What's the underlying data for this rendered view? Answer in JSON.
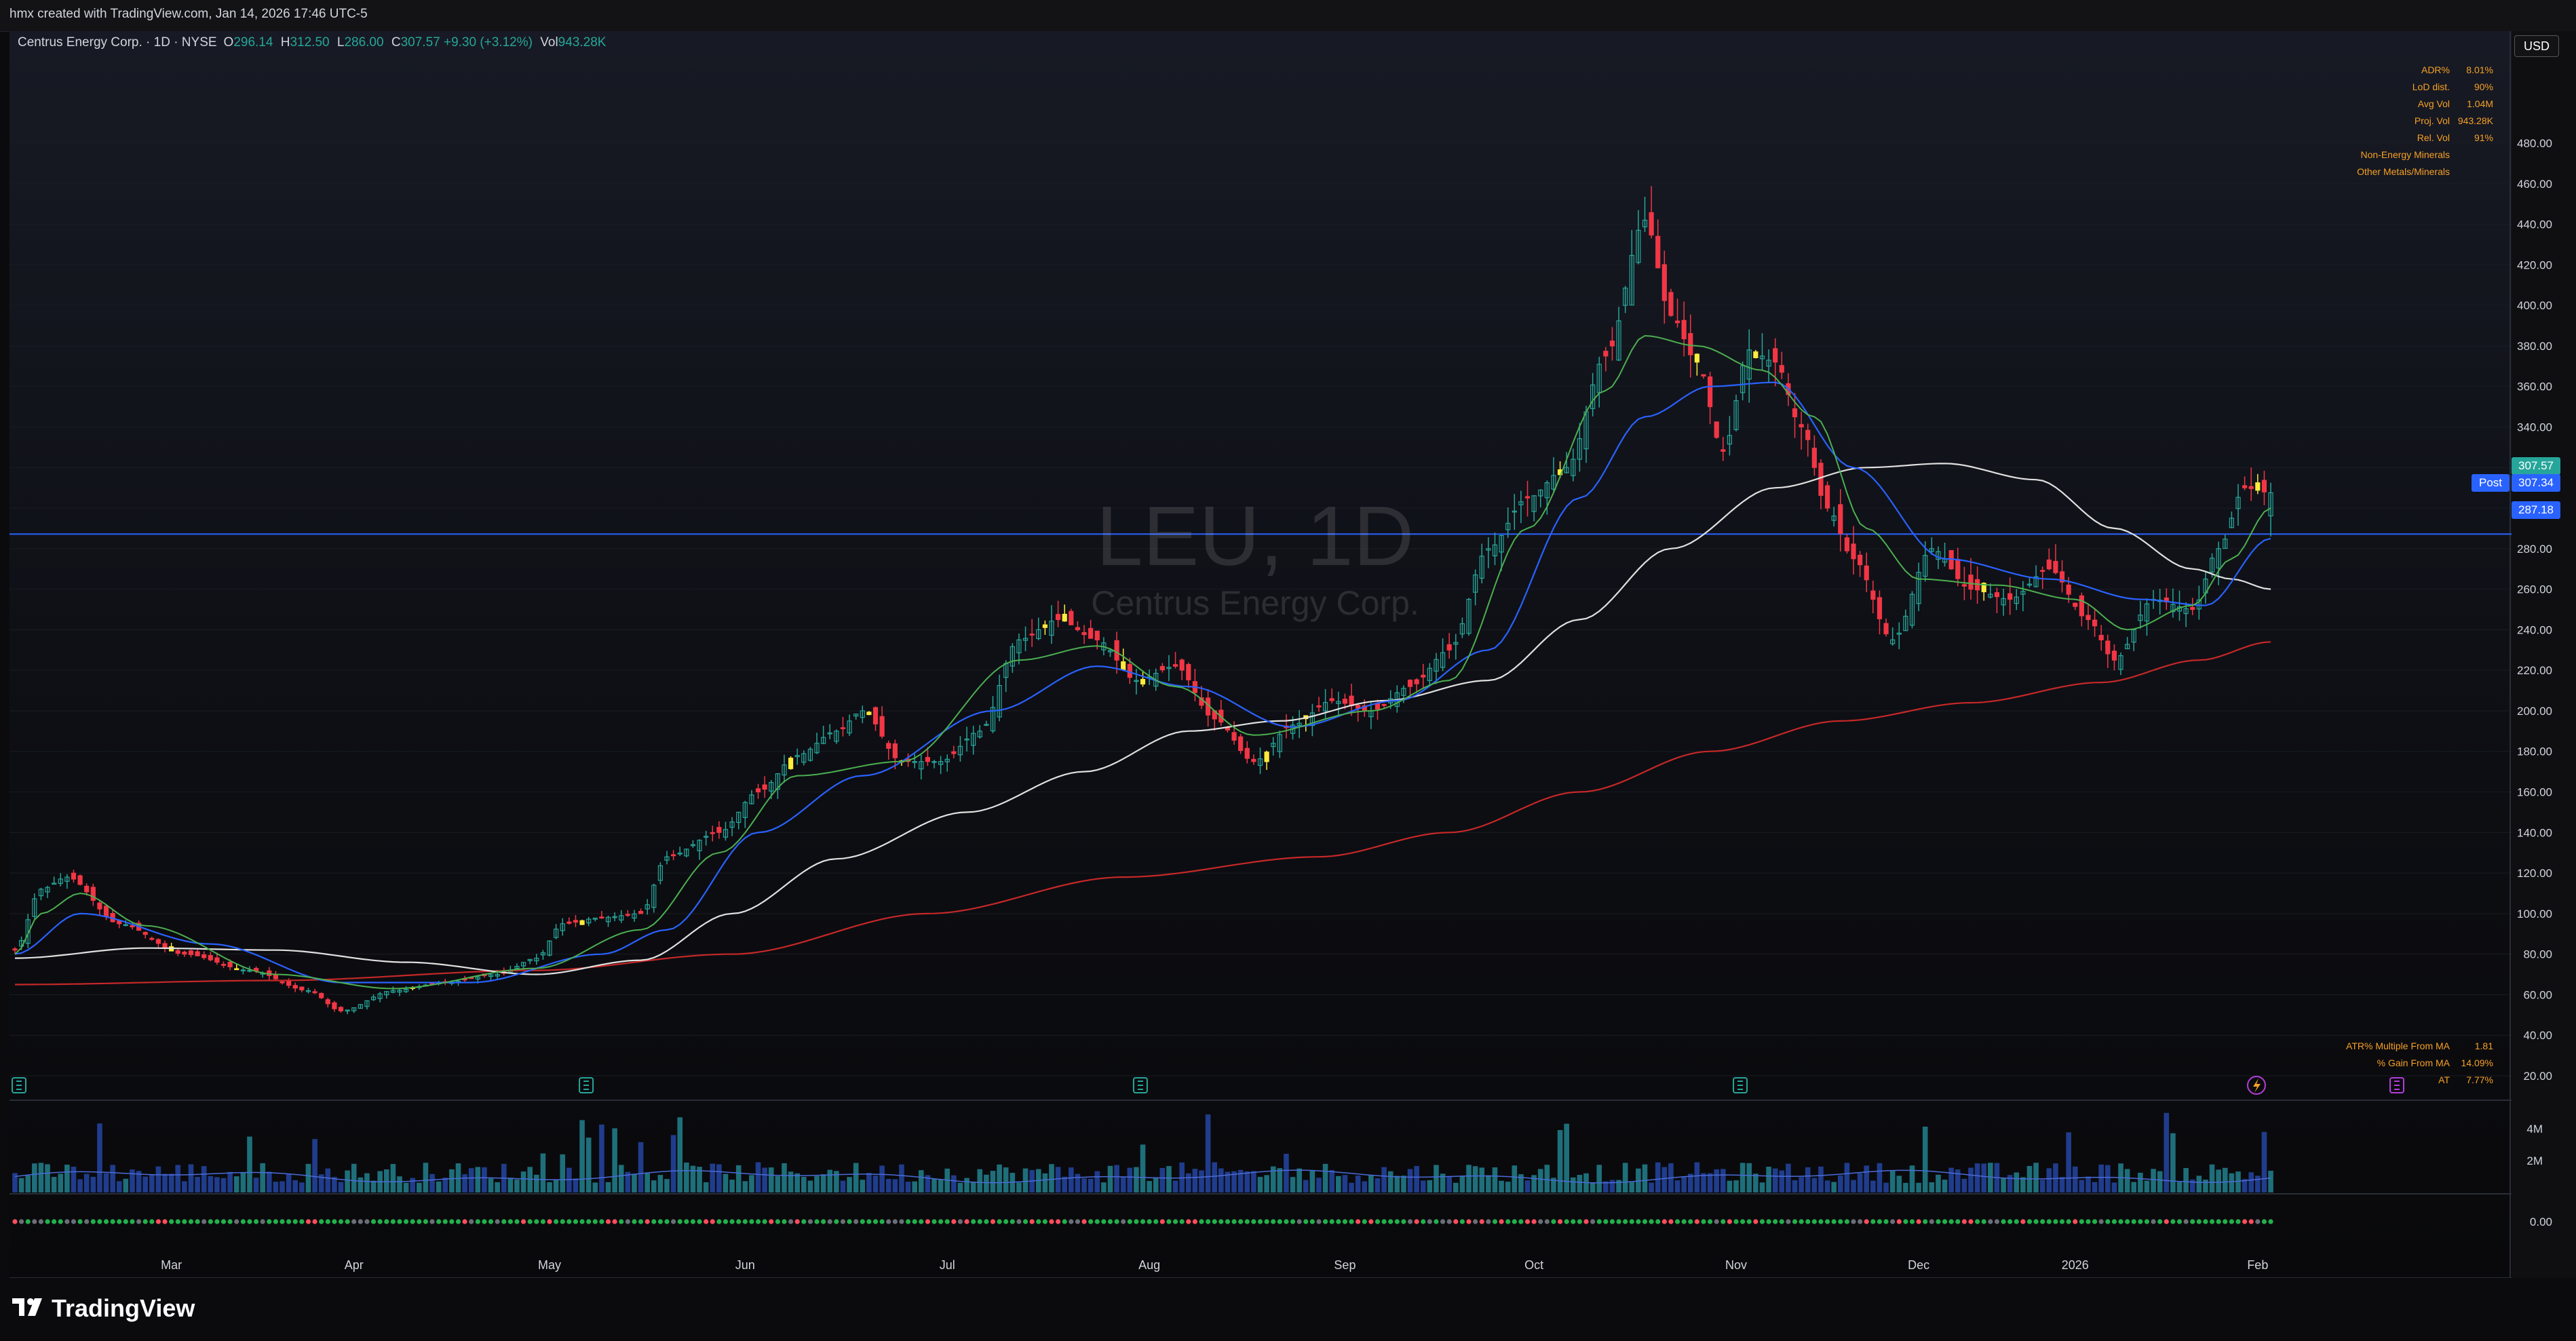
{
  "credit": "hmx created with TradingView.com, Jan 14, 2026 17:46 UTC-5",
  "header": {
    "title": "Centrus Energy Corp. · 1D · NYSE",
    "open_key": "O",
    "open": "296.14",
    "high_key": "H",
    "high": "312.50",
    "low_key": "L",
    "low": "286.00",
    "close_key": "C",
    "close": "307.57 +9.30 (+3.12%)",
    "vol_key": "Vol",
    "vol": "943.28K"
  },
  "currency": "USD",
  "watermark": {
    "symbol": "LEU, 1D",
    "name": "Centrus Energy Corp."
  },
  "stats_top": [
    {
      "label": "ADR%",
      "value": "8.01%"
    },
    {
      "label": "LoD dist.",
      "value": "90%"
    },
    {
      "label": "Avg Vol",
      "value": "1.04M"
    },
    {
      "label": "Proj. Vol",
      "value": "943.28K"
    },
    {
      "label": "Rel. Vol",
      "value": "91%"
    },
    {
      "label": "Non-Energy Minerals",
      "value": ""
    },
    {
      "label": "Other Metals/Minerals",
      "value": ""
    }
  ],
  "stats_bottom": [
    {
      "label": "ATR% Multiple From MA",
      "value": "1.81"
    },
    {
      "label": "% Gain From MA",
      "value": "14.09%"
    },
    {
      "label": "AT",
      "value": "7.77%"
    }
  ],
  "price_tags": {
    "last": "307.57",
    "post_label": "Post",
    "post": "307.34",
    "hline": "287.18"
  },
  "colors": {
    "up": "#26a69a",
    "down": "#f23645",
    "inside": "#ffeb3b",
    "ema10": "#4caf50",
    "ema21": "#2962ff",
    "sma50": "#e0e0e0",
    "sma200": "#c62828",
    "hline": "#2962ff",
    "stats": "#f7a025"
  },
  "chart_data": {
    "type": "candlestick",
    "symbol": "LEU",
    "timeframe": "1D",
    "exchange": "NYSE",
    "y_axis": {
      "range": [
        15,
        510
      ],
      "ticks": [
        "20.00",
        "40.00",
        "60.00",
        "80.00",
        "100.00",
        "120.00",
        "140.00",
        "160.00",
        "180.00",
        "200.00",
        "220.00",
        "240.00",
        "260.00",
        "280.00",
        "300.00",
        "320.00",
        "340.00",
        "360.00",
        "380.00",
        "400.00",
        "420.00",
        "440.00",
        "460.00",
        "480.00"
      ]
    },
    "x_axis": {
      "labels": [
        "Mar",
        "Apr",
        "May",
        "Jun",
        "Jul",
        "Aug",
        "Sep",
        "Oct",
        "Nov",
        "Dec",
        "2026",
        "Feb"
      ]
    },
    "volume_axis": {
      "ticks": [
        "4M",
        "2M"
      ]
    },
    "osc_axis": {
      "ticks": [
        "0.00"
      ]
    },
    "close_waypoints": [
      [
        0,
        82
      ],
      [
        4,
        112
      ],
      [
        8,
        118
      ],
      [
        16,
        95
      ],
      [
        26,
        80
      ],
      [
        36,
        72
      ],
      [
        45,
        62
      ],
      [
        50,
        52
      ],
      [
        58,
        62
      ],
      [
        66,
        66
      ],
      [
        74,
        70
      ],
      [
        80,
        78
      ],
      [
        84,
        95
      ],
      [
        90,
        98
      ],
      [
        96,
        100
      ],
      [
        100,
        128
      ],
      [
        108,
        140
      ],
      [
        114,
        160
      ],
      [
        120,
        178
      ],
      [
        126,
        190
      ],
      [
        130,
        200
      ],
      [
        136,
        175
      ],
      [
        142,
        175
      ],
      [
        148,
        190
      ],
      [
        154,
        235
      ],
      [
        160,
        245
      ],
      [
        166,
        235
      ],
      [
        172,
        215
      ],
      [
        178,
        222
      ],
      [
        184,
        196
      ],
      [
        190,
        175
      ],
      [
        196,
        193
      ],
      [
        202,
        205
      ],
      [
        208,
        200
      ],
      [
        214,
        212
      ],
      [
        220,
        230
      ],
      [
        226,
        280
      ],
      [
        232,
        305
      ],
      [
        238,
        320
      ],
      [
        244,
        375
      ],
      [
        250,
        442
      ],
      [
        254,
        395
      ],
      [
        258,
        372
      ],
      [
        262,
        328
      ],
      [
        266,
        378
      ],
      [
        270,
        372
      ],
      [
        274,
        340
      ],
      [
        278,
        300
      ],
      [
        282,
        275
      ],
      [
        288,
        235
      ],
      [
        294,
        280
      ],
      [
        300,
        260
      ],
      [
        306,
        255
      ],
      [
        312,
        270
      ],
      [
        318,
        245
      ],
      [
        322,
        225
      ],
      [
        328,
        255
      ],
      [
        334,
        250
      ],
      [
        338,
        280
      ],
      [
        342,
        310
      ],
      [
        346,
        307.57
      ]
    ],
    "ema10_waypoints": [
      [
        0,
        80
      ],
      [
        4,
        100
      ],
      [
        10,
        110
      ],
      [
        20,
        94
      ],
      [
        40,
        70
      ],
      [
        58,
        63
      ],
      [
        80,
        73
      ],
      [
        96,
        92
      ],
      [
        108,
        130
      ],
      [
        120,
        168
      ],
      [
        136,
        175
      ],
      [
        154,
        225
      ],
      [
        166,
        232
      ],
      [
        178,
        212
      ],
      [
        190,
        188
      ],
      [
        208,
        200
      ],
      [
        220,
        215
      ],
      [
        232,
        290
      ],
      [
        244,
        358
      ],
      [
        250,
        385
      ],
      [
        258,
        380
      ],
      [
        268,
        368
      ],
      [
        276,
        345
      ],
      [
        284,
        290
      ],
      [
        292,
        265
      ],
      [
        304,
        262
      ],
      [
        316,
        255
      ],
      [
        324,
        240
      ],
      [
        334,
        252
      ],
      [
        340,
        275
      ],
      [
        346,
        300
      ]
    ],
    "ema21_waypoints": [
      [
        0,
        80
      ],
      [
        10,
        100
      ],
      [
        30,
        85
      ],
      [
        50,
        66
      ],
      [
        70,
        66
      ],
      [
        90,
        80
      ],
      [
        100,
        92
      ],
      [
        114,
        140
      ],
      [
        130,
        168
      ],
      [
        150,
        200
      ],
      [
        166,
        222
      ],
      [
        180,
        212
      ],
      [
        196,
        192
      ],
      [
        212,
        205
      ],
      [
        226,
        230
      ],
      [
        240,
        305
      ],
      [
        250,
        345
      ],
      [
        260,
        360
      ],
      [
        270,
        362
      ],
      [
        282,
        320
      ],
      [
        296,
        275
      ],
      [
        312,
        265
      ],
      [
        326,
        255
      ],
      [
        336,
        252
      ],
      [
        346,
        285
      ]
    ],
    "sma50_waypoints": [
      [
        0,
        78
      ],
      [
        20,
        83
      ],
      [
        40,
        82
      ],
      [
        60,
        76
      ],
      [
        80,
        70
      ],
      [
        96,
        77
      ],
      [
        110,
        100
      ],
      [
        126,
        127
      ],
      [
        146,
        150
      ],
      [
        164,
        170
      ],
      [
        180,
        190
      ],
      [
        194,
        195
      ],
      [
        210,
        205
      ],
      [
        226,
        215
      ],
      [
        240,
        245
      ],
      [
        254,
        280
      ],
      [
        270,
        310
      ],
      [
        284,
        320
      ],
      [
        296,
        322
      ],
      [
        310,
        314
      ],
      [
        322,
        290
      ],
      [
        334,
        270
      ],
      [
        340,
        265
      ],
      [
        346,
        260
      ]
    ],
    "sma200_waypoints": [
      [
        0,
        65
      ],
      [
        40,
        67
      ],
      [
        80,
        72
      ],
      [
        110,
        80
      ],
      [
        140,
        100
      ],
      [
        170,
        118
      ],
      [
        200,
        128
      ],
      [
        220,
        140
      ],
      [
        240,
        160
      ],
      [
        260,
        180
      ],
      [
        280,
        195
      ],
      [
        300,
        204
      ],
      [
        320,
        214
      ],
      [
        335,
        225
      ],
      [
        346,
        234
      ]
    ],
    "horizontal_line": 287.18,
    "volume_ticks_values_millions": [
      4,
      2
    ]
  }
}
